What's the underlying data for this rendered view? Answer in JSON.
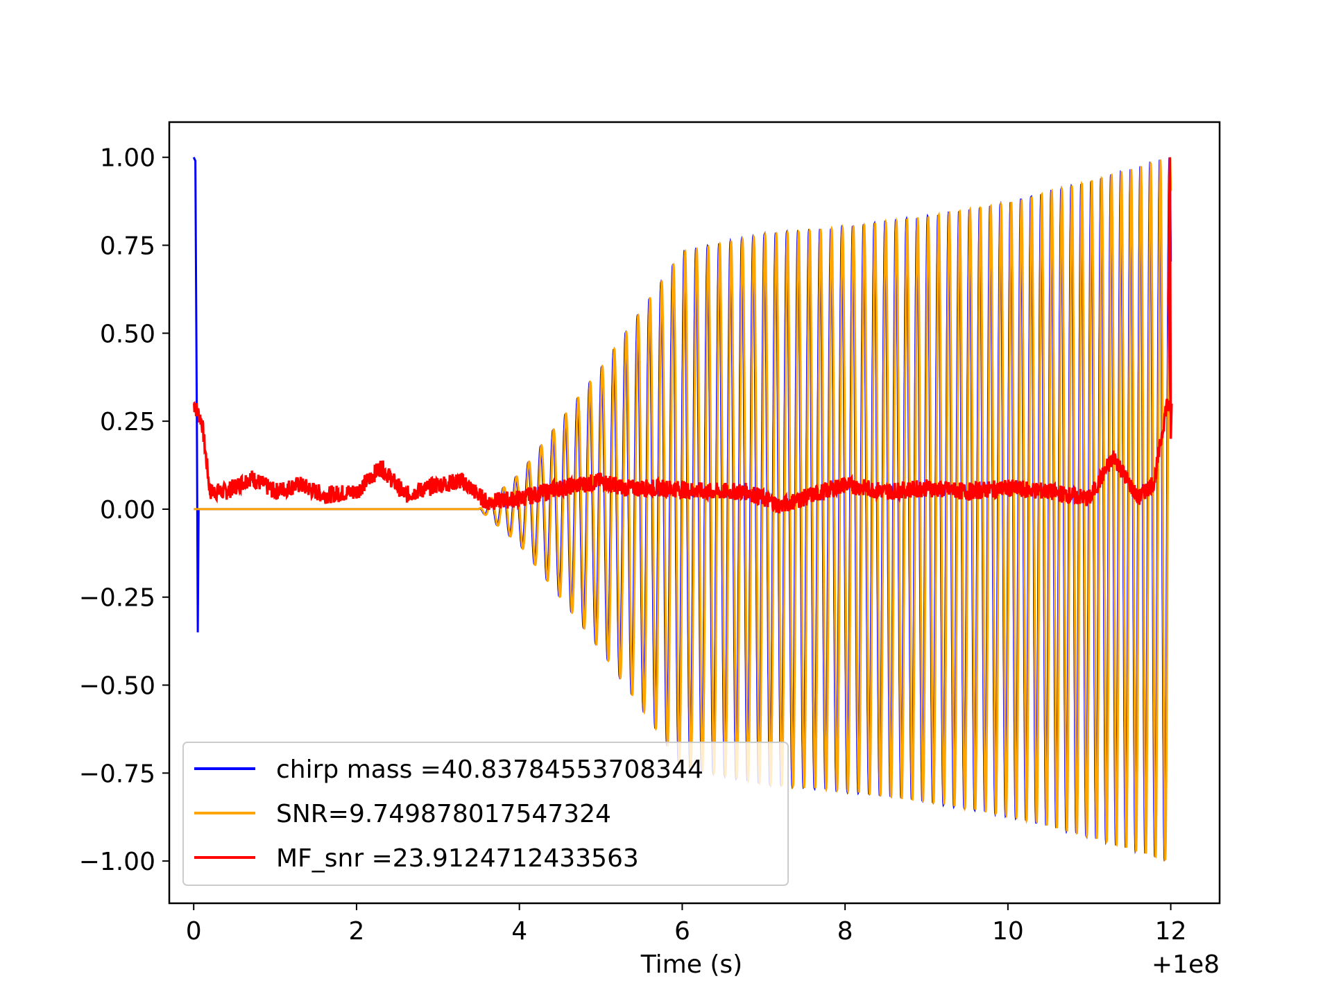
{
  "chart_data": {
    "type": "line",
    "xlabel": "Time (s)",
    "ylabel": "",
    "x_offset_label": "+1e8",
    "xlim": [
      -0.3,
      12.6
    ],
    "ylim": [
      -1.12,
      1.1
    ],
    "xticks": [
      0,
      2,
      4,
      6,
      8,
      10,
      12
    ],
    "xtick_labels": [
      "0",
      "2",
      "4",
      "6",
      "8",
      "10",
      "12"
    ],
    "yticks": [
      1.0,
      0.75,
      0.5,
      0.25,
      0.0,
      -0.25,
      -0.5,
      -0.75,
      -1.0
    ],
    "ytick_labels": [
      "1.00",
      "0.75",
      "0.50",
      "0.25",
      "0.00",
      "−0.25",
      "−0.50",
      "−0.75",
      "−1.00"
    ],
    "grid": false,
    "legend_position": "lower-left",
    "series": [
      {
        "name": "chirp mass =40.83784553708344",
        "color": "#0000ff",
        "description_points": {
          "x": [
            0.0,
            0.02,
            0.05,
            3.5,
            4.0,
            5.0,
            6.0,
            7.0,
            8.0,
            9.0,
            10.0,
            11.0,
            12.0
          ],
          "amplitude": [
            1.0,
            0.0,
            -0.35,
            0.0,
            0.1,
            0.4,
            0.73,
            0.78,
            0.8,
            0.83,
            0.87,
            0.93,
            1.0
          ]
        }
      },
      {
        "name": "SNR=9.749878017547324",
        "color": "#ffa500",
        "description_points": {
          "x": [
            0.0,
            3.5,
            4.0,
            5.0,
            6.0,
            7.0,
            8.0,
            9.0,
            10.0,
            11.0,
            12.0
          ],
          "amplitude": [
            0.0,
            0.0,
            0.1,
            0.4,
            0.73,
            0.78,
            0.8,
            0.83,
            0.87,
            0.93,
            1.0
          ]
        }
      },
      {
        "name": "MF_snr =23.9124712433563",
        "color": "#ff0000",
        "x": [
          0.0,
          0.1,
          0.2,
          0.4,
          0.7,
          1.0,
          1.3,
          1.6,
          2.0,
          2.3,
          2.6,
          3.0,
          3.3,
          3.6,
          4.0,
          4.5,
          5.0,
          5.3,
          5.8,
          6.3,
          6.8,
          7.2,
          7.6,
          8.0,
          8.5,
          9.0,
          9.5,
          10.0,
          10.5,
          11.0,
          11.3,
          11.6,
          11.8,
          11.95,
          12.0
        ],
        "y": [
          0.3,
          0.25,
          0.05,
          0.05,
          0.09,
          0.05,
          0.07,
          0.04,
          0.05,
          0.12,
          0.04,
          0.07,
          0.08,
          0.02,
          0.03,
          0.06,
          0.08,
          0.06,
          0.06,
          0.05,
          0.05,
          0.01,
          0.04,
          0.07,
          0.05,
          0.06,
          0.05,
          0.06,
          0.05,
          0.03,
          0.15,
          0.03,
          0.08,
          0.3,
          0.28
        ]
      }
    ]
  }
}
